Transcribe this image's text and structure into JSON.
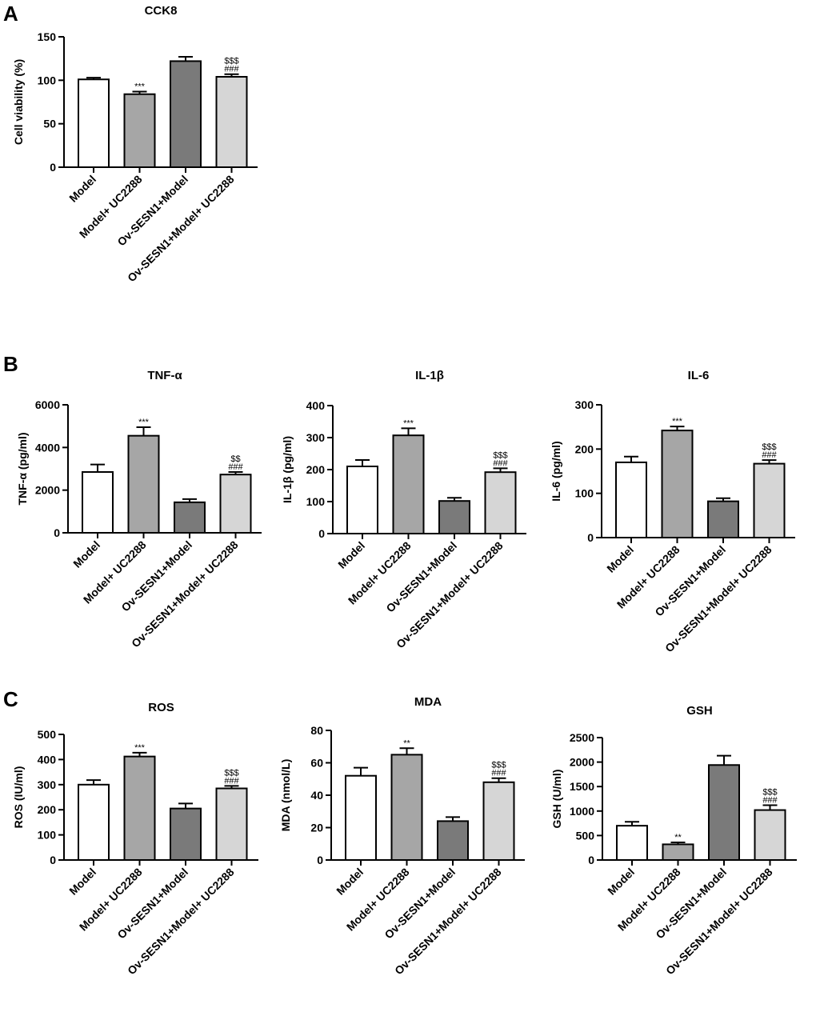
{
  "panel_labels": [
    "A",
    "B",
    "C"
  ],
  "chart_data": [
    {
      "id": "cck8",
      "panel": "A",
      "type": "bar",
      "title": "CCK8",
      "ylabel": "Cell viability (%)",
      "categories": [
        "Model",
        "Model+ UC2288",
        "Ov-SESN1+Model",
        "Ov-SESN1+Model+ UC2288"
      ],
      "values": [
        101,
        84,
        122,
        104
      ],
      "errors": [
        2,
        3,
        5,
        3
      ],
      "annotations": [
        [],
        [
          "***"
        ],
        [],
        [
          "$$$",
          "###"
        ]
      ],
      "ylim": [
        0,
        150
      ],
      "yticks": [
        0,
        50,
        100,
        150
      ]
    },
    {
      "id": "tnf",
      "panel": "B",
      "type": "bar",
      "title": "TNF-α",
      "ylabel": "TNF-α (pg/ml)",
      "categories": [
        "Model",
        "Model+ UC2288",
        "Ov-SESN1+Model",
        "Ov-SESN1+Model+ UC2288"
      ],
      "values": [
        2850,
        4550,
        1430,
        2730
      ],
      "errors": [
        350,
        400,
        150,
        120
      ],
      "annotations": [
        [],
        [
          "***"
        ],
        [],
        [
          "$$",
          "###"
        ]
      ],
      "ylim": [
        0,
        6000
      ],
      "yticks": [
        0,
        2000,
        4000,
        6000
      ]
    },
    {
      "id": "il1b",
      "panel": "B",
      "type": "bar",
      "title": "IL-1β",
      "ylabel": "IL-1β (pg/ml)",
      "categories": [
        "Model",
        "Model+ UC2288",
        "Ov-SESN1+Model",
        "Ov-SESN1+Model+ UC2288"
      ],
      "values": [
        210,
        307,
        102,
        192
      ],
      "errors": [
        20,
        22,
        10,
        12
      ],
      "annotations": [
        [],
        [
          "***"
        ],
        [],
        [
          "$$$",
          "###"
        ]
      ],
      "ylim": [
        0,
        400
      ],
      "yticks": [
        0,
        100,
        200,
        300,
        400
      ]
    },
    {
      "id": "il6",
      "panel": "B",
      "type": "bar",
      "title": "IL-6",
      "ylabel": "IL-6 (pg/ml)",
      "categories": [
        "Model",
        "Model+ UC2288",
        "Ov-SESN1+Model",
        "Ov-SESN1+Model+ UC2288"
      ],
      "values": [
        170,
        242,
        82,
        167
      ],
      "errors": [
        13,
        9,
        7,
        8
      ],
      "annotations": [
        [],
        [
          "***"
        ],
        [],
        [
          "$$$",
          "###"
        ]
      ],
      "ylim": [
        0,
        300
      ],
      "yticks": [
        0,
        100,
        200,
        300
      ]
    },
    {
      "id": "ros",
      "panel": "C",
      "type": "bar",
      "title": "ROS",
      "ylabel": "ROS (IU/ml)",
      "categories": [
        "Model",
        "Model+ UC2288",
        "Ov-SESN1+Model",
        "Ov-SESN1+Model+ UC2288"
      ],
      "values": [
        300,
        412,
        205,
        285
      ],
      "errors": [
        18,
        15,
        20,
        10
      ],
      "annotations": [
        [],
        [
          "***"
        ],
        [],
        [
          "$$$",
          "###"
        ]
      ],
      "ylim": [
        0,
        500
      ],
      "yticks": [
        0,
        100,
        200,
        300,
        400,
        500
      ]
    },
    {
      "id": "mda",
      "panel": "C",
      "type": "bar",
      "title": "MDA",
      "ylabel": "MDA (nmol/L)",
      "categories": [
        "Model",
        "Model+ UC2288",
        "Ov-SESN1+Model",
        "Ov-SESN1+Model+ UC2288"
      ],
      "values": [
        52,
        65,
        24,
        48
      ],
      "errors": [
        5,
        4,
        2.5,
        2.5
      ],
      "annotations": [
        [],
        [
          "**"
        ],
        [],
        [
          "$$$",
          "###"
        ]
      ],
      "ylim": [
        0,
        80
      ],
      "yticks": [
        0,
        20,
        40,
        60,
        80
      ]
    },
    {
      "id": "gsh",
      "panel": "C",
      "type": "bar",
      "title": "GSH",
      "ylabel": "GSH (U/ml)",
      "categories": [
        "Model",
        "Model+ UC2288",
        "Ov-SESN1+Model",
        "Ov-SESN1+Model+ UC2288"
      ],
      "values": [
        700,
        320,
        1940,
        1020
      ],
      "errors": [
        80,
        40,
        190,
        100
      ],
      "annotations": [
        [],
        [
          "**"
        ],
        [],
        [
          "$$$",
          "###"
        ]
      ],
      "ylim": [
        0,
        2500
      ],
      "yticks": [
        0,
        500,
        1000,
        1500,
        2000,
        2500
      ]
    }
  ],
  "colors": {
    "bar_fills": [
      "#ffffff",
      "#a6a6a6",
      "#7a7a7a",
      "#d6d6d6"
    ],
    "stroke": "#000000"
  }
}
